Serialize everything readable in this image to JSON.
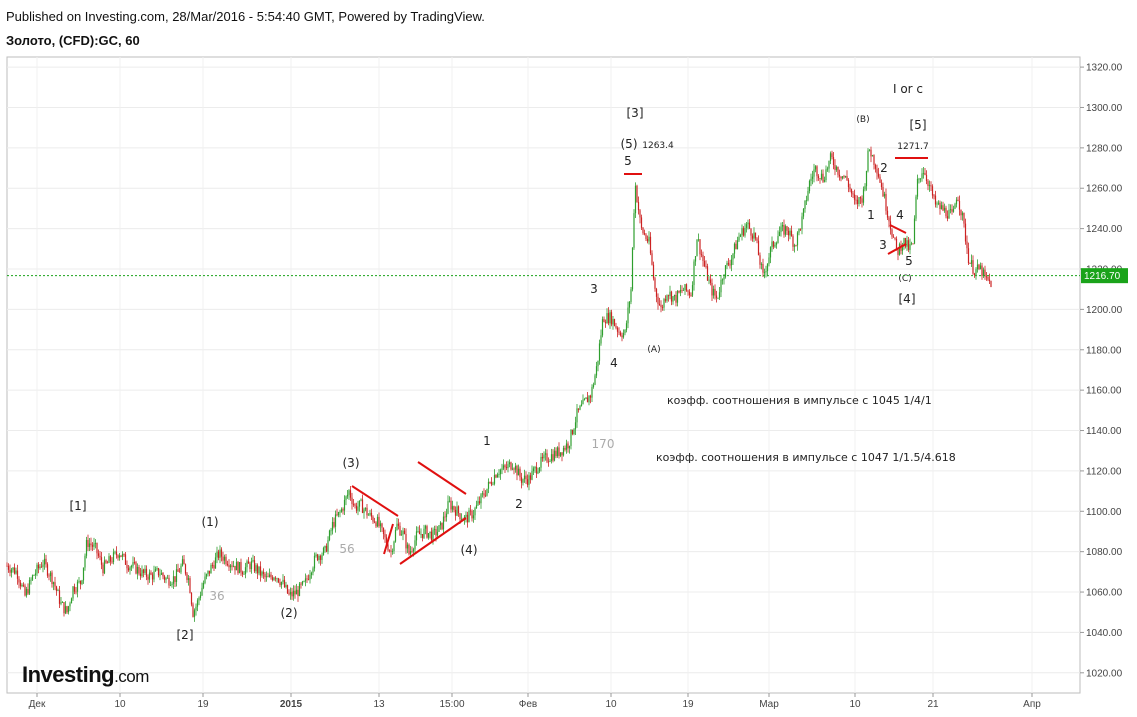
{
  "header": {
    "published": "Published on Investing.com, 28/Mar/2016 - 5:54:40 GMT, Powered by TradingView.",
    "symbol": "Золото, (CFD):GC, 60"
  },
  "logo": {
    "brand": "Investing",
    "suffix": ".com"
  },
  "chart_data": {
    "type": "candlestick",
    "title": "",
    "xlabel": "",
    "ylabel": "",
    "ylim": [
      1010,
      1325
    ],
    "y_ticks": [
      1020.0,
      1040.0,
      1060.0,
      1080.0,
      1100.0,
      1120.0,
      1140.0,
      1160.0,
      1180.0,
      1200.0,
      1220.0,
      1240.0,
      1260.0,
      1280.0,
      1300.0,
      1320.0
    ],
    "x_tick_labels": [
      "Дек",
      "10",
      "19",
      "2015",
      "13",
      "15:00",
      "Фев",
      "10",
      "19",
      "Мар",
      "10",
      "21",
      "Апр"
    ],
    "current_price": "1216.70",
    "grid": true,
    "colors": {
      "up": "#2e9e2e",
      "down": "#cc2222",
      "annotation_line": "#e01010",
      "price_line": "#1aa31a"
    },
    "price_path": [
      [
        0,
        1073
      ],
      [
        10,
        1070
      ],
      [
        18,
        1058
      ],
      [
        26,
        1068
      ],
      [
        36,
        1075
      ],
      [
        46,
        1066
      ],
      [
        54,
        1054
      ],
      [
        60,
        1050
      ],
      [
        66,
        1062
      ],
      [
        74,
        1065
      ],
      [
        80,
        1085
      ],
      [
        88,
        1082
      ],
      [
        96,
        1072
      ],
      [
        104,
        1076
      ],
      [
        112,
        1080
      ],
      [
        120,
        1074
      ],
      [
        128,
        1072
      ],
      [
        136,
        1069
      ],
      [
        144,
        1068
      ],
      [
        152,
        1070
      ],
      [
        160,
        1066
      ],
      [
        168,
        1067
      ],
      [
        176,
        1074
      ],
      [
        182,
        1066
      ],
      [
        186,
        1050
      ],
      [
        190,
        1054
      ],
      [
        196,
        1064
      ],
      [
        204,
        1072
      ],
      [
        212,
        1079
      ],
      [
        220,
        1076
      ],
      [
        228,
        1073
      ],
      [
        236,
        1071
      ],
      [
        244,
        1074
      ],
      [
        252,
        1070
      ],
      [
        260,
        1066
      ],
      [
        268,
        1069
      ],
      [
        276,
        1064
      ],
      [
        282,
        1058
      ],
      [
        290,
        1060
      ],
      [
        298,
        1064
      ],
      [
        304,
        1072
      ],
      [
        310,
        1078
      ],
      [
        318,
        1080
      ],
      [
        326,
        1094
      ],
      [
        334,
        1100
      ],
      [
        342,
        1110
      ],
      [
        348,
        1102
      ],
      [
        354,
        1103
      ],
      [
        362,
        1098
      ],
      [
        370,
        1095
      ],
      [
        378,
        1086
      ],
      [
        384,
        1080
      ],
      [
        390,
        1093
      ],
      [
        396,
        1089
      ],
      [
        402,
        1079
      ],
      [
        410,
        1088
      ],
      [
        418,
        1090
      ],
      [
        426,
        1088
      ],
      [
        434,
        1092
      ],
      [
        442,
        1104
      ],
      [
        450,
        1100
      ],
      [
        458,
        1096
      ],
      [
        466,
        1099
      ],
      [
        474,
        1106
      ],
      [
        482,
        1113
      ],
      [
        490,
        1120
      ],
      [
        498,
        1121
      ],
      [
        506,
        1124
      ],
      [
        514,
        1116
      ],
      [
        522,
        1116
      ],
      [
        530,
        1122
      ],
      [
        538,
        1126
      ],
      [
        546,
        1128
      ],
      [
        554,
        1130
      ],
      [
        562,
        1134
      ],
      [
        570,
        1148
      ],
      [
        578,
        1154
      ],
      [
        584,
        1158
      ],
      [
        590,
        1172
      ],
      [
        596,
        1196
      ],
      [
        604,
        1196
      ],
      [
        612,
        1189
      ],
      [
        618,
        1188
      ],
      [
        624,
        1210
      ],
      [
        628,
        1263
      ],
      [
        634,
        1240
      ],
      [
        642,
        1233
      ],
      [
        648,
        1210
      ],
      [
        654,
        1200
      ],
      [
        660,
        1209
      ],
      [
        668,
        1205
      ],
      [
        676,
        1210
      ],
      [
        684,
        1208
      ],
      [
        690,
        1236
      ],
      [
        696,
        1224
      ],
      [
        704,
        1210
      ],
      [
        710,
        1205
      ],
      [
        716,
        1218
      ],
      [
        724,
        1225
      ],
      [
        732,
        1236
      ],
      [
        740,
        1242
      ],
      [
        748,
        1236
      ],
      [
        756,
        1216
      ],
      [
        764,
        1230
      ],
      [
        772,
        1238
      ],
      [
        780,
        1240
      ],
      [
        788,
        1232
      ],
      [
        796,
        1246
      ],
      [
        802,
        1262
      ],
      [
        808,
        1270
      ],
      [
        816,
        1265
      ],
      [
        824,
        1275
      ],
      [
        832,
        1268
      ],
      [
        840,
        1264
      ],
      [
        848,
        1252
      ],
      [
        856,
        1256
      ],
      [
        862,
        1280
      ],
      [
        870,
        1270
      ],
      [
        876,
        1258
      ],
      [
        882,
        1245
      ],
      [
        886,
        1236
      ],
      [
        890,
        1228
      ],
      [
        896,
        1234
      ],
      [
        902,
        1230
      ],
      [
        906,
        1232
      ],
      [
        910,
        1262
      ],
      [
        916,
        1270
      ],
      [
        922,
        1262
      ],
      [
        928,
        1252
      ],
      [
        934,
        1250
      ],
      [
        940,
        1248
      ],
      [
        946,
        1246
      ],
      [
        950,
        1258
      ],
      [
        956,
        1244
      ],
      [
        962,
        1224
      ],
      [
        968,
        1219
      ],
      [
        974,
        1220
      ],
      [
        978,
        1215
      ],
      [
        984,
        1213
      ]
    ],
    "x_span": 1075,
    "wave_labels": [
      {
        "text": "[1]",
        "pos": [
          78,
          506
        ]
      },
      {
        "text": "[2]",
        "pos": [
          185,
          635
        ]
      },
      {
        "text": "(1)",
        "pos": [
          210,
          522
        ]
      },
      {
        "text": "(2)",
        "pos": [
          289,
          613
        ]
      },
      {
        "text": "36",
        "pos": [
          217,
          596
        ],
        "muted": true
      },
      {
        "text": "(3)",
        "pos": [
          351,
          463
        ]
      },
      {
        "text": "56",
        "pos": [
          347,
          549
        ],
        "muted": true
      },
      {
        "text": "(4)",
        "pos": [
          469,
          550
        ]
      },
      {
        "text": "1",
        "pos": [
          487,
          441
        ]
      },
      {
        "text": "2",
        "pos": [
          519,
          504
        ]
      },
      {
        "text": "170",
        "pos": [
          603,
          444
        ],
        "muted": true
      },
      {
        "text": "3",
        "pos": [
          594,
          289
        ]
      },
      {
        "text": "4",
        "pos": [
          614,
          363
        ]
      },
      {
        "text": "[3]",
        "pos": [
          635,
          113
        ]
      },
      {
        "text": "(5)",
        "pos": [
          629,
          144
        ]
      },
      {
        "text": "1263.4",
        "pos": [
          658,
          144
        ],
        "small": true
      },
      {
        "text": "5",
        "pos": [
          628,
          161
        ]
      },
      {
        "text": "(A)",
        "pos": [
          654,
          348
        ],
        "small": true
      },
      {
        "text": "(B)",
        "pos": [
          863,
          118
        ],
        "small": true
      },
      {
        "text": "I or c",
        "pos": [
          908,
          89
        ]
      },
      {
        "text": "[5]",
        "pos": [
          918,
          125
        ]
      },
      {
        "text": "1271.7",
        "pos": [
          913,
          145
        ],
        "small": true
      },
      {
        "text": "2",
        "pos": [
          884,
          168
        ]
      },
      {
        "text": "1",
        "pos": [
          871,
          215
        ]
      },
      {
        "text": "4",
        "pos": [
          900,
          215
        ]
      },
      {
        "text": "3",
        "pos": [
          883,
          245
        ]
      },
      {
        "text": "5",
        "pos": [
          909,
          261
        ]
      },
      {
        "text": "(C)",
        "pos": [
          905,
          277
        ],
        "small": true
      },
      {
        "text": "[4]",
        "pos": [
          907,
          299
        ]
      }
    ],
    "annotations": [
      "коэфф. соотношения в импульсе с 1045 1/4/1",
      "коэфф. соотношения в импульсе с 1047 1/1.5/4.618"
    ]
  }
}
